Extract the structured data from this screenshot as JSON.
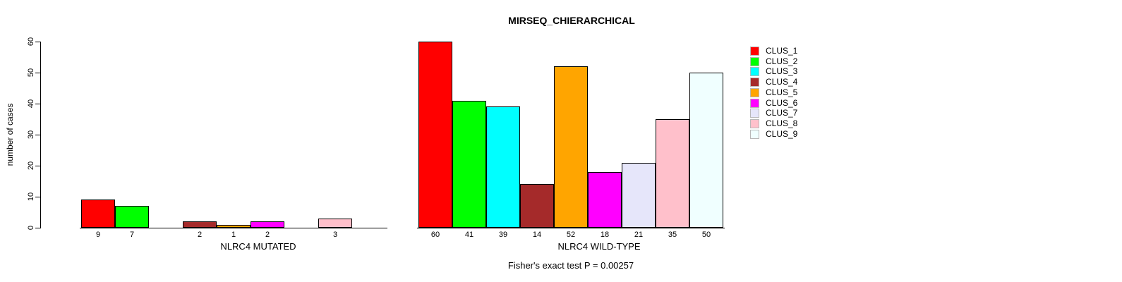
{
  "title": "MIRSEQ_CHIERARCHICAL",
  "footer": "Fisher's exact test P = 0.00257",
  "ylabel": "number of cases",
  "legend": {
    "position": "right",
    "items": [
      {
        "label": "CLUS_1",
        "color": "#FF0000"
      },
      {
        "label": "CLUS_2",
        "color": "#00FF00"
      },
      {
        "label": "CLUS_3",
        "color": "#00FFFF"
      },
      {
        "label": "CLUS_4",
        "color": "#A52A2A"
      },
      {
        "label": "CLUS_5",
        "color": "#FFA500"
      },
      {
        "label": "CLUS_6",
        "color": "#FF00FF"
      },
      {
        "label": "CLUS_7",
        "color": "#E6E6FA"
      },
      {
        "label": "CLUS_8",
        "color": "#FFC0CB"
      },
      {
        "label": "CLUS_9",
        "color": "#F0FFFF"
      }
    ]
  },
  "chart_data": {
    "type": "bar",
    "title": "MIRSEQ_CHIERARCHICAL",
    "ylabel": "number of cases",
    "ylim": [
      0,
      60
    ],
    "yticks": [
      0,
      10,
      20,
      30,
      40,
      50,
      60
    ],
    "grid": false,
    "legend_position": "right",
    "categories": [
      "CLUS_1",
      "CLUS_2",
      "CLUS_3",
      "CLUS_4",
      "CLUS_5",
      "CLUS_6",
      "CLUS_7",
      "CLUS_8",
      "CLUS_9"
    ],
    "colors": [
      "#FF0000",
      "#00FF00",
      "#00FFFF",
      "#A52A2A",
      "#FFA500",
      "#FF00FF",
      "#E6E6FA",
      "#FFC0CB",
      "#F0FFFF"
    ],
    "bar_border_color": "#000000",
    "groups": [
      {
        "xlabel": "NLRC4 MUTATED",
        "values": [
          9,
          7,
          0,
          2,
          1,
          2,
          0,
          3,
          0
        ]
      },
      {
        "xlabel": "NLRC4 WILD-TYPE",
        "values": [
          60,
          41,
          39,
          14,
          52,
          18,
          21,
          35,
          50
        ]
      }
    ],
    "annotation": "Fisher's exact test P = 0.00257"
  }
}
